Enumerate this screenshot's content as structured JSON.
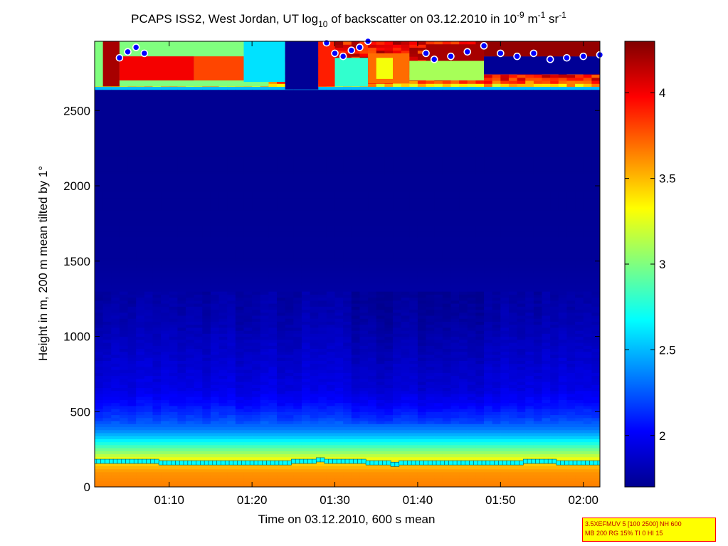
{
  "title": {
    "part1": "PCAPS ISS2, West Jordan, UT log",
    "sub1": "10",
    "part2": " of backscatter on 03.12.2010 in 10",
    "sup1": "-9",
    "part3": " m",
    "sup2": "-1",
    "part4": " sr",
    "sup3": "-1"
  },
  "param_box": {
    "line1": "3.5XEFMUV 5 [100 2500] NH 600",
    "line2": "MB 200 RG 15% TI 0 HI 15"
  },
  "colors": {
    "jet": [
      "#00008f",
      "#0000ff",
      "#00ffff",
      "#ffff00",
      "#ff0000",
      "#800000"
    ],
    "mixing_layer_marker": "#00ffff",
    "cloud_marker_fill": "#0000ff",
    "cloud_marker_edge": "#ffffff"
  },
  "chart_data": {
    "type": "heatmap",
    "xlabel": "Time on 03.12.2010, 600 s mean",
    "ylabel": "Height in m, 200 m mean tilted by 1°",
    "xlim": [
      "01:01",
      "02:02"
    ],
    "ylim": [
      0,
      2960
    ],
    "x_ticks": [
      "01:10",
      "01:20",
      "01:30",
      "01:40",
      "01:50",
      "02:00"
    ],
    "y_ticks": [
      0,
      500,
      1000,
      1500,
      2000,
      2500
    ],
    "clim": [
      1.7,
      4.3
    ],
    "colorbar_ticks": [
      2,
      2.5,
      3,
      3.5,
      4
    ],
    "colormap": "jet",
    "backscatter_profile": {
      "height_m": [
        0,
        100,
        170,
        220,
        280,
        330,
        380,
        450,
        550,
        650,
        800,
        950,
        1100,
        1300,
        1500,
        1800,
        2200,
        2640,
        2660,
        2700,
        2800,
        2960
      ],
      "log10_beta": [
        3.65,
        3.6,
        3.4,
        3.1,
        2.8,
        2.55,
        2.35,
        2.2,
        2.05,
        1.95,
        1.9,
        1.85,
        1.8,
        1.76,
        1.73,
        1.72,
        1.71,
        1.71,
        3.3,
        3.9,
        4.0,
        4.0
      ]
    },
    "mixing_layer_height": {
      "time": [
        "01:01",
        "01:08",
        "01:09",
        "01:23",
        "01:25",
        "01:28",
        "01:29",
        "01:33",
        "01:34",
        "01:36",
        "01:37",
        "01:38",
        "01:52",
        "01:53",
        "01:56",
        "01:57",
        "02:02"
      ],
      "height_m": [
        170,
        170,
        160,
        160,
        170,
        180,
        170,
        170,
        160,
        160,
        150,
        160,
        160,
        170,
        170,
        160,
        160
      ]
    },
    "cloud_base_height": {
      "time": [
        "01:04",
        "01:05",
        "01:06",
        "01:07",
        "01:29",
        "01:30",
        "01:31",
        "01:32",
        "01:33",
        "01:34",
        "01:41",
        "01:42",
        "01:44",
        "01:46",
        "01:48",
        "01:50",
        "01:52",
        "01:54",
        "01:56",
        "01:58",
        "02:00",
        "02:02"
      ],
      "height_m": [
        2850,
        2890,
        2920,
        2880,
        2950,
        2880,
        2860,
        2900,
        2920,
        2960,
        2880,
        2840,
        2860,
        2890,
        2930,
        2880,
        2860,
        2880,
        2840,
        2850,
        2860,
        2870
      ]
    }
  }
}
